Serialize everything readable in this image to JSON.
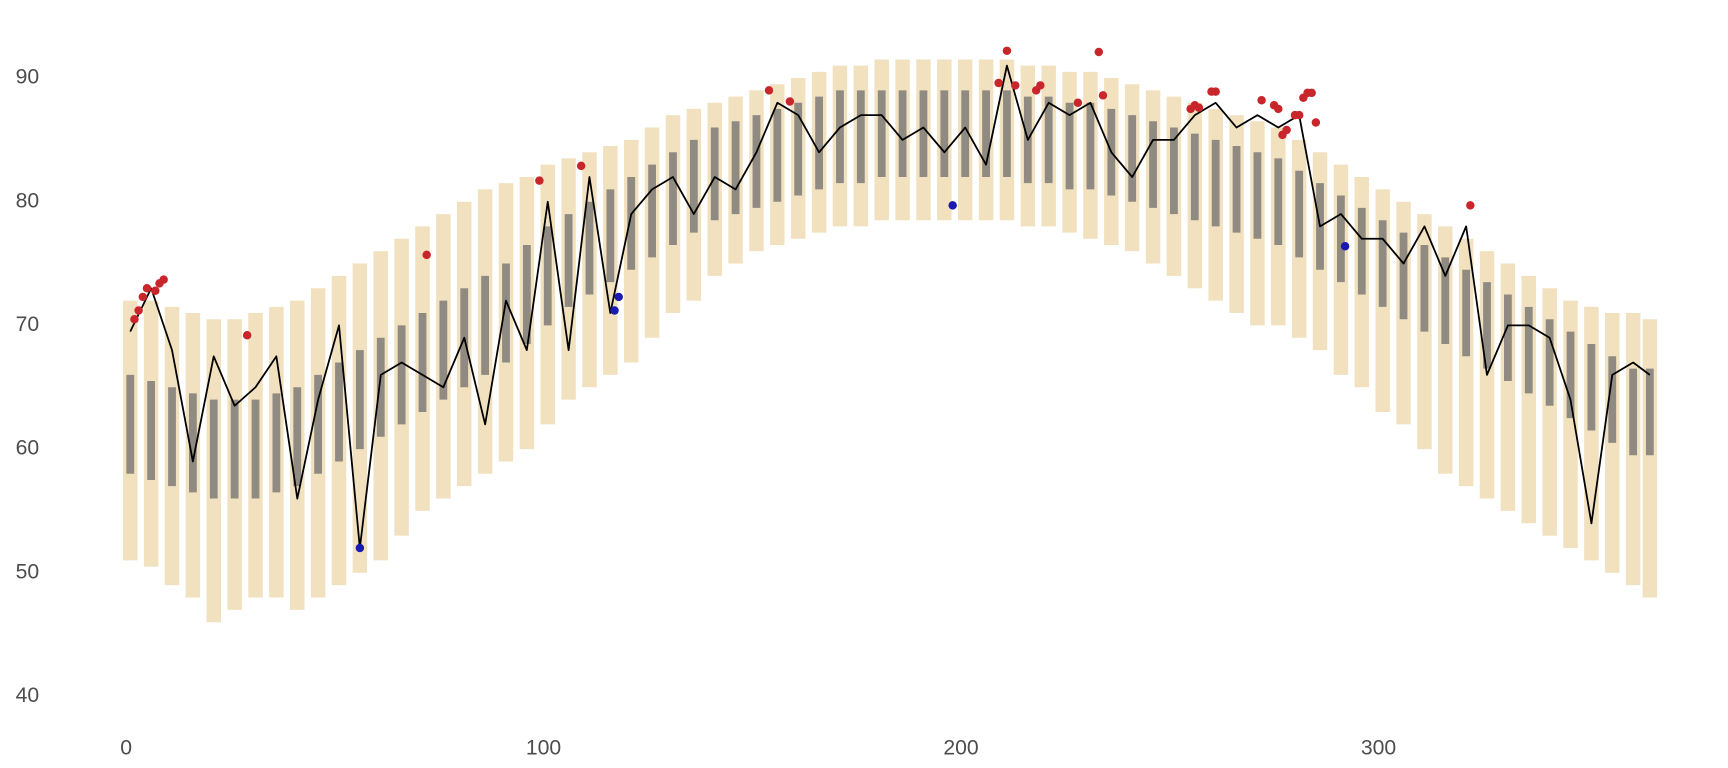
{
  "chart_data": {
    "type": "line",
    "x": [
      1,
      6,
      11,
      16,
      21,
      26,
      31,
      36,
      41,
      46,
      51,
      56,
      61,
      66,
      71,
      76,
      81,
      86,
      91,
      96,
      101,
      106,
      111,
      116,
      121,
      126,
      131,
      136,
      141,
      146,
      151,
      156,
      161,
      166,
      171,
      176,
      181,
      186,
      191,
      196,
      201,
      206,
      211,
      216,
      221,
      226,
      231,
      236,
      241,
      246,
      251,
      256,
      261,
      266,
      271,
      276,
      281,
      286,
      291,
      296,
      301,
      306,
      311,
      316,
      321,
      326,
      331,
      336,
      341,
      346,
      351,
      356,
      361,
      365
    ],
    "values": [
      69.5,
      73,
      68,
      59,
      67.5,
      63.5,
      65,
      67.5,
      56,
      64,
      70,
      52,
      66,
      67,
      66,
      65,
      69,
      62,
      72,
      68,
      80,
      68,
      82,
      71,
      79,
      81,
      82,
      79,
      82,
      81,
      84,
      88,
      87,
      84,
      86,
      87,
      87,
      85,
      86,
      84,
      86,
      83,
      91,
      85,
      88,
      87,
      88,
      84,
      82,
      85,
      85,
      87,
      88,
      86,
      87,
      86,
      87,
      78,
      79,
      77,
      77,
      75,
      78,
      74,
      78,
      66,
      70,
      70,
      69,
      64,
      54,
      66,
      67,
      66
    ],
    "color": "#000000",
    "ranges": [
      {
        "color": "#f0dcb4",
        "low": [
          51,
          50.5,
          49,
          48,
          46,
          47,
          48,
          48,
          47,
          48,
          49,
          50,
          51,
          53,
          55,
          56,
          57,
          58,
          59,
          60,
          62,
          64,
          65,
          66,
          67,
          69,
          71,
          72,
          74,
          75,
          76,
          76.5,
          77,
          77.5,
          78,
          78,
          78.5,
          78.5,
          78.5,
          78.5,
          78.5,
          78.5,
          78.5,
          78,
          78,
          77.5,
          77,
          76.5,
          76,
          75,
          74,
          73,
          72,
          71,
          70,
          70,
          69,
          68,
          66,
          65,
          63,
          62,
          60,
          58,
          57,
          56,
          55,
          54,
          53,
          52,
          51,
          50,
          49,
          48
        ],
        "high": [
          72,
          72,
          71.5,
          71,
          70.5,
          70.5,
          71,
          71.5,
          72,
          73,
          74,
          75,
          76,
          77,
          78,
          79,
          80,
          81,
          81.5,
          82,
          83,
          83.5,
          84,
          84.5,
          85,
          86,
          87,
          87.5,
          88,
          88.5,
          89,
          89.5,
          90,
          90.5,
          91,
          91,
          91.5,
          91.5,
          91.5,
          91.5,
          91.5,
          91.5,
          91.5,
          91,
          91,
          90.5,
          90.5,
          90,
          89.5,
          89,
          88.5,
          88,
          87.5,
          87,
          86.5,
          86,
          85,
          84,
          83,
          82,
          81,
          80,
          79,
          78,
          77,
          76,
          75,
          74,
          73,
          72,
          71.5,
          71,
          71,
          70.5
        ]
      },
      {
        "color": "#6e6e6e",
        "low": [
          58,
          57.5,
          57,
          56.5,
          56,
          56,
          56,
          56.5,
          57,
          58,
          59,
          60,
          61,
          62,
          63,
          64,
          65,
          66,
          67,
          68.5,
          70,
          71.5,
          72.5,
          73.5,
          74.5,
          75.5,
          76.5,
          77.5,
          78.5,
          79,
          79.5,
          80,
          80.5,
          81,
          81.5,
          81.5,
          82,
          82,
          82,
          82,
          82,
          82,
          82,
          81.5,
          81.5,
          81,
          81,
          80.5,
          80,
          79.5,
          79,
          78.5,
          78,
          77.5,
          77,
          76.5,
          75.5,
          74.5,
          73.5,
          72.5,
          71.5,
          70.5,
          69.5,
          68.5,
          67.5,
          66.5,
          65.5,
          64.5,
          63.5,
          62.5,
          61.5,
          60.5,
          59.5,
          59.5
        ],
        "high": [
          66,
          65.5,
          65,
          64.5,
          64,
          64,
          64,
          64.5,
          65,
          66,
          67,
          68,
          69,
          70,
          71,
          72,
          73,
          74,
          75,
          76.5,
          78,
          79,
          80,
          81,
          82,
          83,
          84,
          85,
          86,
          86.5,
          87,
          87.5,
          88,
          88.5,
          89,
          89,
          89,
          89,
          89,
          89,
          89,
          89,
          89,
          88.5,
          88.5,
          88,
          88,
          87.5,
          87,
          86.5,
          86,
          85.5,
          85,
          84.5,
          84,
          83.5,
          82.5,
          81.5,
          80.5,
          79.5,
          78.5,
          77.5,
          76.5,
          75.5,
          74.5,
          73.5,
          72.5,
          71.5,
          70.5,
          69.5,
          68.5,
          67.5,
          66.5,
          66.5
        ]
      }
    ],
    "points": [
      {
        "color": "#c8262b",
        "x": [
          2,
          3,
          4,
          5,
          7,
          8,
          9,
          29,
          72,
          99,
          109,
          154,
          159,
          209,
          211,
          213,
          218,
          219,
          228,
          233,
          234,
          255,
          256,
          257,
          260,
          261,
          272,
          275,
          276,
          277,
          278,
          280,
          281,
          282,
          283,
          284,
          285,
          322
        ],
        "y": [
          70.5,
          71.2,
          72.3,
          73,
          72.8,
          73.4,
          73.7,
          69.2,
          75.7,
          81.7,
          82.9,
          89,
          88.1,
          89.6,
          92.2,
          89.4,
          89,
          89.4,
          88,
          92.1,
          88.6,
          87.5,
          87.8,
          87.6,
          88.9,
          88.9,
          88.2,
          87.8,
          87.5,
          85.4,
          85.8,
          87,
          87,
          88.4,
          88.8,
          88.8,
          86.4,
          79.7
        ]
      },
      {
        "color": "#1a1ab0",
        "x": [
          56,
          117,
          118,
          198,
          292
        ],
        "y": [
          52,
          71.2,
          72.3,
          79.7,
          76.4
        ]
      }
    ],
    "xlim": [
      0,
      365
    ],
    "ylim": [
      38,
      94
    ],
    "xticks": [
      0,
      100,
      200,
      300
    ],
    "yticks": [
      40,
      50,
      60,
      70,
      80,
      90
    ]
  }
}
